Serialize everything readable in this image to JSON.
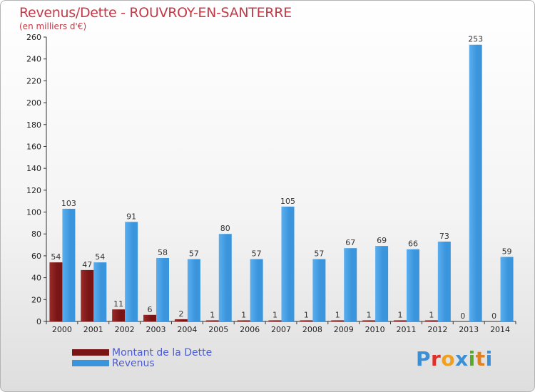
{
  "colors": {
    "dette": "#7a1515",
    "revenus": "#3b95dd",
    "title": "#c23a47",
    "legend_text": "#4b5bd6"
  },
  "chart_data": {
    "type": "bar",
    "title": "Revenus/Dette - ROUVROY-EN-SANTERRE",
    "subtitle": "(en milliers d'€)",
    "categories": [
      "2000",
      "2001",
      "2002",
      "2003",
      "2004",
      "2005",
      "2006",
      "2007",
      "2008",
      "2009",
      "2010",
      "2011",
      "2012",
      "2013",
      "2014"
    ],
    "series": [
      {
        "name": "Montant de la Dette",
        "color": "#7a1515",
        "values": [
          54,
          47,
          11,
          6,
          2,
          1,
          1,
          1,
          1,
          1,
          1,
          1,
          1,
          0,
          0
        ]
      },
      {
        "name": "Revenus",
        "color": "#3b95dd",
        "values": [
          103,
          54,
          91,
          58,
          57,
          80,
          57,
          105,
          57,
          67,
          69,
          66,
          73,
          253,
          59
        ]
      }
    ],
    "ylim": [
      0,
      260
    ],
    "yticks": [
      0,
      20,
      40,
      60,
      80,
      100,
      120,
      140,
      160,
      180,
      200,
      220,
      240,
      260
    ],
    "grid": false,
    "legend_position": "bottom-left"
  },
  "logo": {
    "letters": [
      {
        "char": "P",
        "color": "#3b8fd6"
      },
      {
        "char": "r",
        "color": "#e0302a"
      },
      {
        "char": "o",
        "color": "#f0a020"
      },
      {
        "char": "x",
        "color": "#3b8fd6"
      },
      {
        "char": "i",
        "color": "#5aaa2a"
      },
      {
        "char": "t",
        "color": "#e08020"
      },
      {
        "char": "i",
        "color": "#3b8fd6"
      }
    ]
  }
}
